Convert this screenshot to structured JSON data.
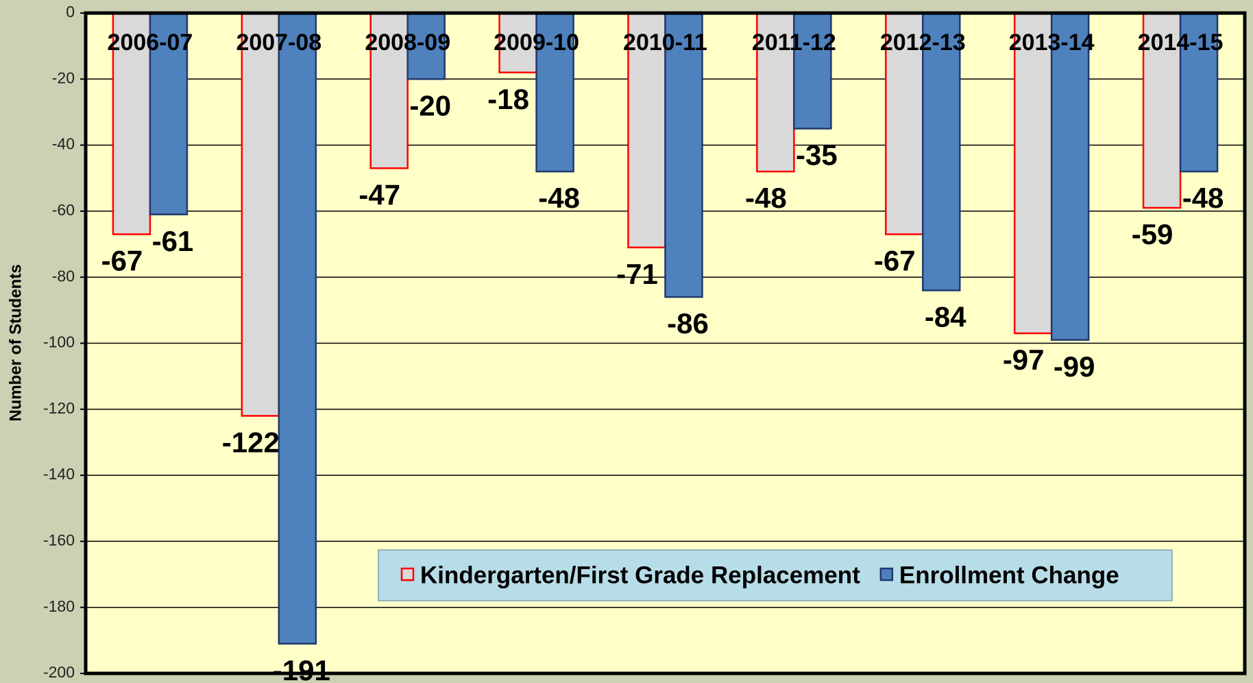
{
  "chart_data": {
    "type": "bar",
    "ylabel": "Number of Students",
    "categories": [
      "2006-07",
      "2007-08",
      "2008-09",
      "2009-10",
      "2010-11",
      "2011-12",
      "2012-13",
      "2013-14",
      "2014-15"
    ],
    "series": [
      {
        "name": "Kindergarten/First Grade Replacement",
        "color": "#d9d9d9",
        "edgecolor": "#ff0000",
        "values": [
          -67,
          -122,
          -47,
          -18,
          -71,
          -48,
          -67,
          -97,
          -59
        ]
      },
      {
        "name": "Enrollment Change",
        "color": "#4f81bd",
        "edgecolor": "#1f3a6e",
        "values": [
          -61,
          -191,
          -20,
          -48,
          -86,
          -35,
          -84,
          -99,
          -48
        ]
      }
    ],
    "ylim": [
      -200,
      0
    ],
    "yticks": [
      -200,
      -180,
      -160,
      -140,
      -120,
      -100,
      -80,
      -60,
      -40,
      -20,
      0
    ],
    "grid": true
  }
}
